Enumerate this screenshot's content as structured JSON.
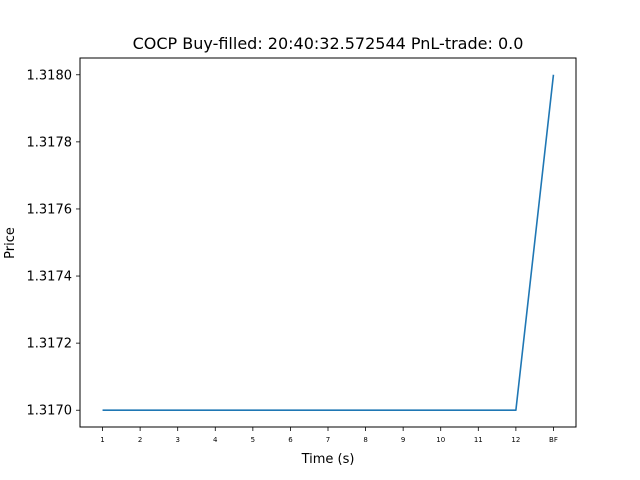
{
  "chart_data": {
    "type": "line",
    "title": "COCP  Buy-filled:  20:40:32.572544  PnL-trade:  0.0",
    "xlabel": "Time (s)",
    "ylabel": "Price",
    "categories": [
      "1",
      "2",
      "3",
      "4",
      "5",
      "6",
      "7",
      "8",
      "9",
      "10",
      "11",
      "12",
      "BF"
    ],
    "series": [
      {
        "values": [
          1.317,
          1.317,
          1.317,
          1.317,
          1.317,
          1.317,
          1.317,
          1.317,
          1.317,
          1.317,
          1.317,
          1.317,
          1.318
        ],
        "color": "#1f77b4"
      }
    ],
    "ylim": [
      1.31695,
      1.31805
    ],
    "yticks": [
      1.317,
      1.3172,
      1.3174,
      1.3176,
      1.3178,
      1.318
    ],
    "ytick_labels": [
      "1.3170",
      "1.3172",
      "1.3174",
      "1.3176",
      "1.3178",
      "1.3180"
    ],
    "grid": false,
    "legend": "none"
  }
}
